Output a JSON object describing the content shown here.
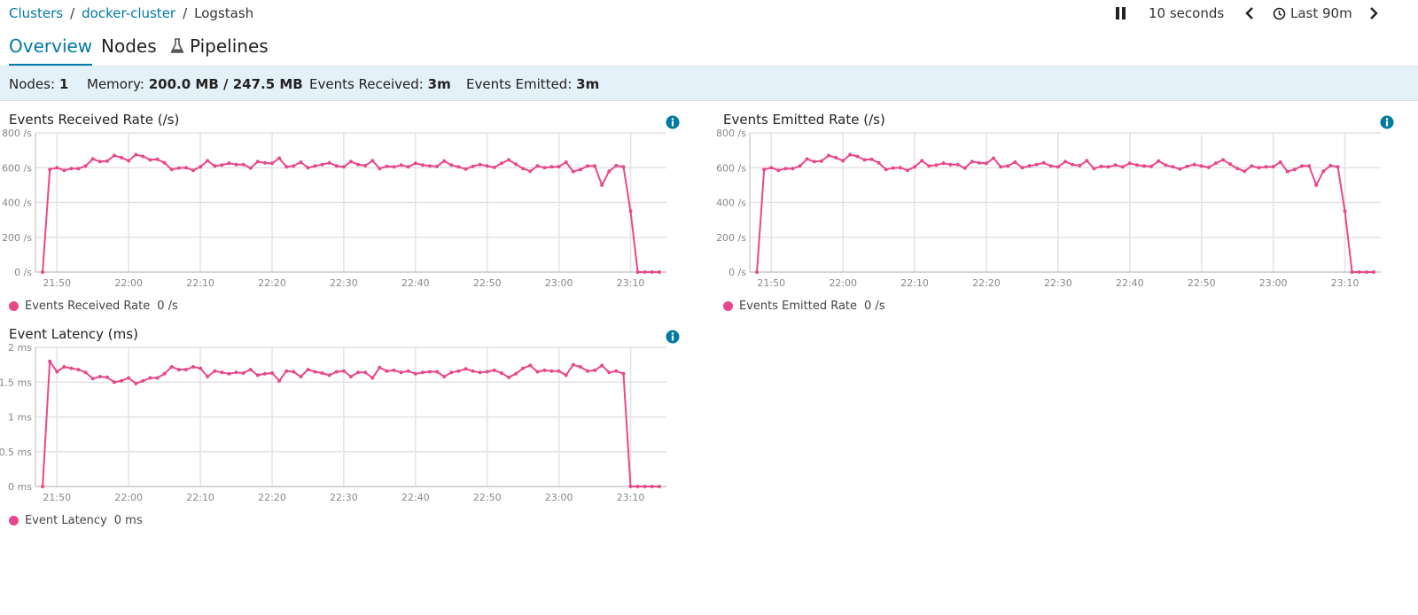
{
  "breadcrumb": {
    "items": [
      "Clusters",
      "docker-cluster",
      "Logstash"
    ],
    "separator": "/"
  },
  "timepicker": {
    "interval_label": "10 seconds",
    "range_label": "Last 90m",
    "icons": [
      "pause-icon",
      "chevron-left-icon",
      "clock-icon",
      "chevron-right-icon"
    ]
  },
  "tabs": [
    {
      "label": "Overview",
      "active": true
    },
    {
      "label": "Nodes",
      "active": false
    },
    {
      "label": "Pipelines",
      "active": false,
      "icon": "flask-icon"
    }
  ],
  "status": {
    "nodes_label": "Nodes:",
    "nodes_value": "1",
    "memory_label": "Memory:",
    "memory_value": "200.0 MB / 247.5 MB",
    "received_label": "Events Received:",
    "received_value": "3m",
    "emitted_label": "Events Emitted:",
    "emitted_value": "3m"
  },
  "colors": {
    "accent": "#0079a5",
    "series": "#e8488b",
    "statusbar_bg": "#e5f1f8"
  },
  "chart_data": [
    {
      "type": "line",
      "title": "Events Received Rate (/s)",
      "x_ticks": [
        "21:50",
        "22:00",
        "22:10",
        "22:20",
        "22:30",
        "22:40",
        "22:50",
        "23:00",
        "23:10"
      ],
      "y_ticks": [
        "0 /s",
        "200 /s",
        "400 /s",
        "600 /s",
        "800 /s"
      ],
      "ylim": [
        0,
        800
      ],
      "xlim_minutes": [
        0,
        88
      ],
      "grid": true,
      "legend_position": "bottom-left",
      "series": [
        {
          "name": "Events Received Rate",
          "current_value": "0 /s",
          "x": [
            1,
            2,
            3,
            4,
            5,
            6,
            7,
            8,
            9,
            10,
            11,
            12,
            13,
            14,
            15,
            16,
            17,
            18,
            19,
            20,
            21,
            22,
            23,
            24,
            25,
            26,
            27,
            28,
            29,
            30,
            31,
            32,
            33,
            34,
            35,
            36,
            37,
            38,
            39,
            40,
            41,
            42,
            43,
            44,
            45,
            46,
            47,
            48,
            49,
            50,
            51,
            52,
            53,
            54,
            55,
            56,
            57,
            58,
            59,
            60,
            61,
            62,
            63,
            64,
            65,
            66,
            67,
            68,
            69,
            70,
            71,
            72,
            73,
            74,
            75,
            76,
            77,
            78,
            79,
            80,
            81,
            82,
            83,
            84,
            85,
            86,
            87
          ],
          "values": [
            0,
            590,
            600,
            585,
            595,
            595,
            610,
            650,
            635,
            638,
            670,
            658,
            640,
            675,
            665,
            645,
            648,
            628,
            590,
            598,
            600,
            585,
            605,
            640,
            610,
            615,
            625,
            618,
            618,
            598,
            635,
            628,
            625,
            655,
            605,
            610,
            632,
            600,
            610,
            618,
            628,
            610,
            605,
            635,
            618,
            612,
            640,
            595,
            608,
            605,
            615,
            605,
            625,
            615,
            610,
            608,
            638,
            615,
            605,
            592,
            608,
            618,
            610,
            602,
            625,
            645,
            620,
            595,
            580,
            610,
            600,
            605,
            606,
            632,
            578,
            590,
            610,
            610,
            500,
            580,
            612,
            605,
            350,
            0,
            0,
            0,
            0
          ]
        }
      ]
    },
    {
      "type": "line",
      "title": "Events Emitted Rate (/s)",
      "x_ticks": [
        "21:50",
        "22:00",
        "22:10",
        "22:20",
        "22:30",
        "22:40",
        "22:50",
        "23:00",
        "23:10"
      ],
      "y_ticks": [
        "0 /s",
        "200 /s",
        "400 /s",
        "600 /s",
        "800 /s"
      ],
      "ylim": [
        0,
        800
      ],
      "xlim_minutes": [
        0,
        88
      ],
      "grid": true,
      "legend_position": "bottom-left",
      "series": [
        {
          "name": "Events Emitted Rate",
          "current_value": "0 /s",
          "x": [
            1,
            2,
            3,
            4,
            5,
            6,
            7,
            8,
            9,
            10,
            11,
            12,
            13,
            14,
            15,
            16,
            17,
            18,
            19,
            20,
            21,
            22,
            23,
            24,
            25,
            26,
            27,
            28,
            29,
            30,
            31,
            32,
            33,
            34,
            35,
            36,
            37,
            38,
            39,
            40,
            41,
            42,
            43,
            44,
            45,
            46,
            47,
            48,
            49,
            50,
            51,
            52,
            53,
            54,
            55,
            56,
            57,
            58,
            59,
            60,
            61,
            62,
            63,
            64,
            65,
            66,
            67,
            68,
            69,
            70,
            71,
            72,
            73,
            74,
            75,
            76,
            77,
            78,
            79,
            80,
            81,
            82,
            83,
            84,
            85,
            86,
            87
          ],
          "values": [
            0,
            590,
            600,
            585,
            595,
            595,
            610,
            650,
            635,
            638,
            670,
            658,
            640,
            675,
            665,
            645,
            648,
            628,
            590,
            598,
            600,
            585,
            605,
            640,
            610,
            615,
            625,
            618,
            618,
            598,
            635,
            628,
            625,
            655,
            605,
            610,
            632,
            600,
            610,
            618,
            628,
            610,
            605,
            635,
            618,
            612,
            640,
            595,
            608,
            605,
            615,
            605,
            625,
            615,
            610,
            608,
            638,
            615,
            605,
            592,
            608,
            618,
            610,
            602,
            625,
            645,
            620,
            595,
            580,
            610,
            600,
            605,
            606,
            632,
            578,
            590,
            610,
            610,
            500,
            580,
            612,
            605,
            350,
            0,
            0,
            0,
            0
          ]
        }
      ]
    },
    {
      "type": "line",
      "title": "Event Latency (ms)",
      "x_ticks": [
        "21:50",
        "22:00",
        "22:10",
        "22:20",
        "22:30",
        "22:40",
        "22:50",
        "23:00",
        "23:10"
      ],
      "y_ticks": [
        "0 ms",
        "0.5 ms",
        "1 ms",
        "1.5 ms",
        "2 ms"
      ],
      "ylim": [
        0,
        2
      ],
      "xlim_minutes": [
        0,
        88
      ],
      "grid": true,
      "legend_position": "bottom-left",
      "series": [
        {
          "name": "Event Latency",
          "current_value": "0 ms",
          "x": [
            1,
            2,
            3,
            4,
            5,
            6,
            7,
            8,
            9,
            10,
            11,
            12,
            13,
            14,
            15,
            16,
            17,
            18,
            19,
            20,
            21,
            22,
            23,
            24,
            25,
            26,
            27,
            28,
            29,
            30,
            31,
            32,
            33,
            34,
            35,
            36,
            37,
            38,
            39,
            40,
            41,
            42,
            43,
            44,
            45,
            46,
            47,
            48,
            49,
            50,
            51,
            52,
            53,
            54,
            55,
            56,
            57,
            58,
            59,
            60,
            61,
            62,
            63,
            64,
            65,
            66,
            67,
            68,
            69,
            70,
            71,
            72,
            73,
            74,
            75,
            76,
            77,
            78,
            79,
            80,
            81,
            82,
            83,
            84,
            85,
            86,
            87
          ],
          "values": [
            0,
            1.8,
            1.65,
            1.72,
            1.7,
            1.68,
            1.64,
            1.55,
            1.58,
            1.57,
            1.5,
            1.52,
            1.56,
            1.48,
            1.52,
            1.56,
            1.56,
            1.62,
            1.72,
            1.68,
            1.68,
            1.72,
            1.7,
            1.58,
            1.66,
            1.64,
            1.62,
            1.64,
            1.63,
            1.68,
            1.6,
            1.62,
            1.63,
            1.52,
            1.66,
            1.65,
            1.58,
            1.68,
            1.65,
            1.63,
            1.6,
            1.65,
            1.66,
            1.58,
            1.64,
            1.64,
            1.56,
            1.71,
            1.66,
            1.67,
            1.64,
            1.66,
            1.62,
            1.64,
            1.65,
            1.65,
            1.58,
            1.64,
            1.66,
            1.69,
            1.66,
            1.64,
            1.65,
            1.67,
            1.63,
            1.57,
            1.62,
            1.7,
            1.74,
            1.65,
            1.67,
            1.66,
            1.66,
            1.6,
            1.75,
            1.72,
            1.66,
            1.67,
            1.74,
            1.64,
            1.66,
            1.62,
            0,
            0,
            0,
            0,
            0
          ]
        }
      ]
    }
  ]
}
